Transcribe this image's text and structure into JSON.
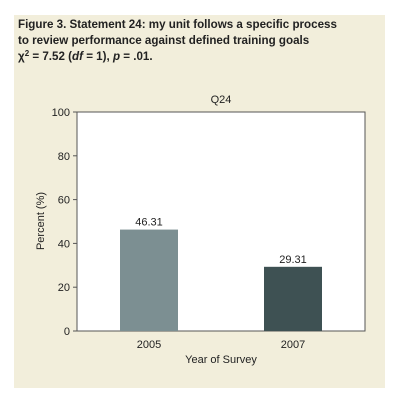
{
  "figure": {
    "caption_line1": "Figure 3. Statement 24: my unit follows a specific process",
    "caption_line2": "to review performance against defined training goals",
    "stat_chi": "χ",
    "stat_chi_exp": "2",
    "stat_mid": " = 7.52 (",
    "stat_df_label": "df",
    "stat_df_rest": " = 1), ",
    "stat_p_label": "p",
    "stat_p_rest": " = .01."
  },
  "colors": {
    "panel_background": "#f2eedb",
    "plot_background": "#ffffff",
    "bar_2005": "#7c8f92",
    "bar_2007": "#3e5153",
    "text": "#222222"
  },
  "chart_data": {
    "type": "bar",
    "title": "Q24",
    "xlabel": "Year of Survey",
    "ylabel": "Percent (%)",
    "categories": [
      "2005",
      "2007"
    ],
    "values": [
      46.31,
      29.31
    ],
    "value_labels": [
      "46.31",
      "29.31"
    ],
    "ylim": [
      0,
      100
    ],
    "yticks": [
      0,
      20,
      40,
      60,
      80,
      100
    ],
    "ytick_labels": [
      "0",
      "20",
      "40",
      "60",
      "80",
      "100"
    ],
    "grid": false,
    "legend": "none"
  }
}
